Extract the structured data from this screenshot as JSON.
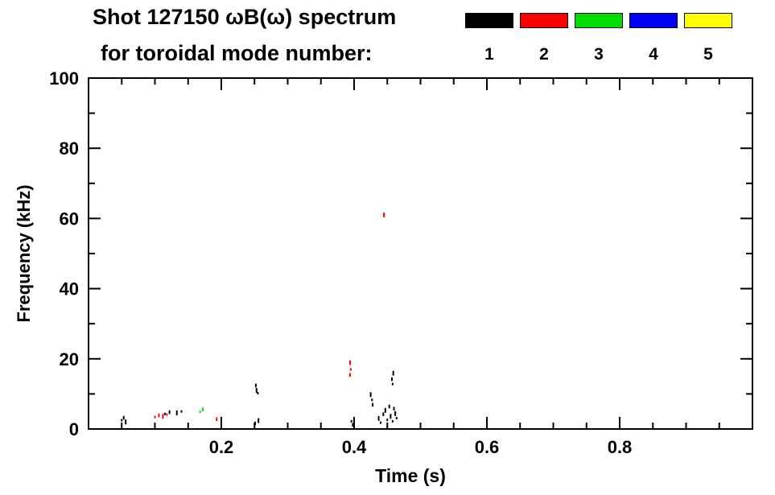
{
  "chart_data": {
    "type": "scatter",
    "title": "Shot 127150 ωB(ω) spectrum",
    "subtitle": "for toroidal mode number:",
    "xlabel": "Time (s)",
    "ylabel": "Frequency (kHz)",
    "xlim": [
      0.0,
      1.0
    ],
    "ylim": [
      0,
      100
    ],
    "x_major_ticks": [
      0.2,
      0.4,
      0.6,
      0.8
    ],
    "x_minor_step": 0.05,
    "y_major_ticks": [
      0,
      20,
      40,
      60,
      80,
      100
    ],
    "y_minor_step": 10,
    "grid": false,
    "legend_position": "top-right",
    "series": [
      {
        "name": "1",
        "color": "#000000",
        "points": [
          [
            0.05,
            2.5
          ],
          [
            0.053,
            3.2
          ],
          [
            0.056,
            2.0
          ],
          [
            0.115,
            4.3
          ],
          [
            0.122,
            4.8
          ],
          [
            0.133,
            4.6
          ],
          [
            0.14,
            5.0
          ],
          [
            0.252,
            12.4
          ],
          [
            0.253,
            11.0
          ],
          [
            0.255,
            10.2
          ],
          [
            0.251,
            1.6
          ],
          [
            0.256,
            2.4
          ],
          [
            0.396,
            2.2
          ],
          [
            0.398,
            1.2
          ],
          [
            0.425,
            9.8
          ],
          [
            0.427,
            8.3
          ],
          [
            0.428,
            6.9
          ],
          [
            0.437,
            3.0
          ],
          [
            0.44,
            1.8
          ],
          [
            0.444,
            4.2
          ],
          [
            0.447,
            5.3
          ],
          [
            0.45,
            2.6
          ],
          [
            0.453,
            6.4
          ],
          [
            0.455,
            3.6
          ],
          [
            0.458,
            2.2
          ],
          [
            0.46,
            5.8
          ],
          [
            0.462,
            4.4
          ],
          [
            0.464,
            3.1
          ],
          [
            0.457,
            14.2
          ],
          [
            0.459,
            15.9
          ],
          [
            0.458,
            12.8
          ]
        ]
      },
      {
        "name": "2",
        "color": "#ff0000",
        "points": [
          [
            0.1,
            3.4
          ],
          [
            0.106,
            3.9
          ],
          [
            0.112,
            3.6
          ],
          [
            0.118,
            4.1
          ],
          [
            0.193,
            2.8
          ],
          [
            0.394,
            18.9
          ],
          [
            0.395,
            17.0
          ],
          [
            0.394,
            15.4
          ],
          [
            0.445,
            61.0
          ]
        ]
      },
      {
        "name": "3",
        "color": "#00dd00",
        "points": [
          [
            0.168,
            4.9
          ],
          [
            0.172,
            5.6
          ]
        ]
      },
      {
        "name": "4",
        "color": "#0000ff",
        "points": []
      },
      {
        "name": "5",
        "color": "#ffff00",
        "points": []
      }
    ]
  }
}
